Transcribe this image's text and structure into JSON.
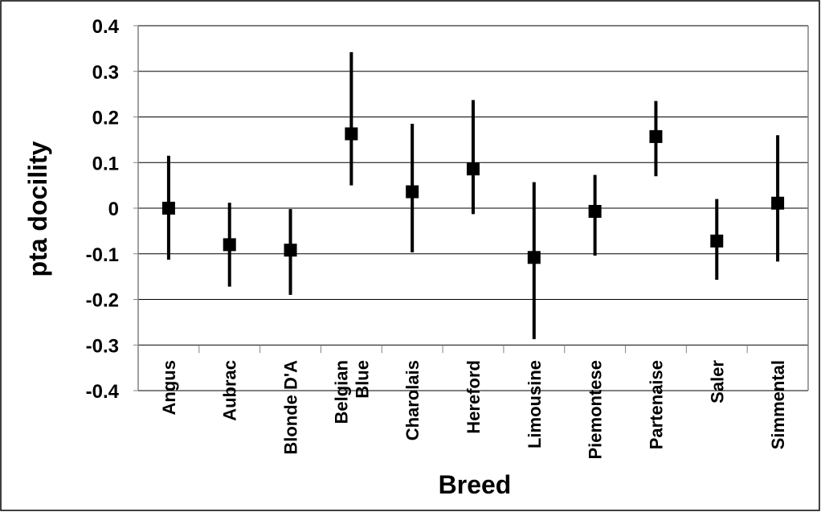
{
  "chart_data": {
    "type": "errorbar",
    "xlabel": "Breed",
    "ylabel": "pta docility",
    "ylim": [
      -0.4,
      0.4
    ],
    "yticks": [
      0.4,
      0.3,
      0.2,
      0.1,
      0,
      -0.1,
      -0.2,
      -0.3,
      -0.4
    ],
    "ytick_labels": [
      "0.4",
      "0.3",
      "0.2",
      "0.1",
      "0",
      "-0.1",
      "-0.2",
      "-0.3",
      "-0.4"
    ],
    "grid": true,
    "categories": [
      {
        "label_lines": [
          "Angus"
        ],
        "value": 0.0,
        "low": -0.113,
        "high": 0.115
      },
      {
        "label_lines": [
          "Aubrac"
        ],
        "value": -0.08,
        "low": -0.172,
        "high": 0.012
      },
      {
        "label_lines": [
          "Blonde D'A"
        ],
        "value": -0.092,
        "low": -0.19,
        "high": -0.002
      },
      {
        "label_lines": [
          "Belgian",
          "Blue"
        ],
        "value": 0.163,
        "low": 0.05,
        "high": 0.342
      },
      {
        "label_lines": [
          "Charolais"
        ],
        "value": 0.036,
        "low": -0.097,
        "high": 0.185
      },
      {
        "label_lines": [
          "Hereford"
        ],
        "value": 0.086,
        "low": -0.013,
        "high": 0.237
      },
      {
        "label_lines": [
          "Limousine"
        ],
        "value": -0.108,
        "low": -0.287,
        "high": 0.057
      },
      {
        "label_lines": [
          "Piemontese"
        ],
        "value": -0.007,
        "low": -0.104,
        "high": 0.073
      },
      {
        "label_lines": [
          "Partenaise"
        ],
        "value": 0.157,
        "low": 0.07,
        "high": 0.235
      },
      {
        "label_lines": [
          "Saler"
        ],
        "value": -0.072,
        "low": -0.157,
        "high": 0.02
      },
      {
        "label_lines": [
          "Simmental"
        ],
        "value": 0.011,
        "low": -0.117,
        "high": 0.16
      }
    ],
    "colors": {
      "marker": "#000000",
      "grid": "#000000",
      "axis": "#808080",
      "frame": "#000000"
    }
  }
}
